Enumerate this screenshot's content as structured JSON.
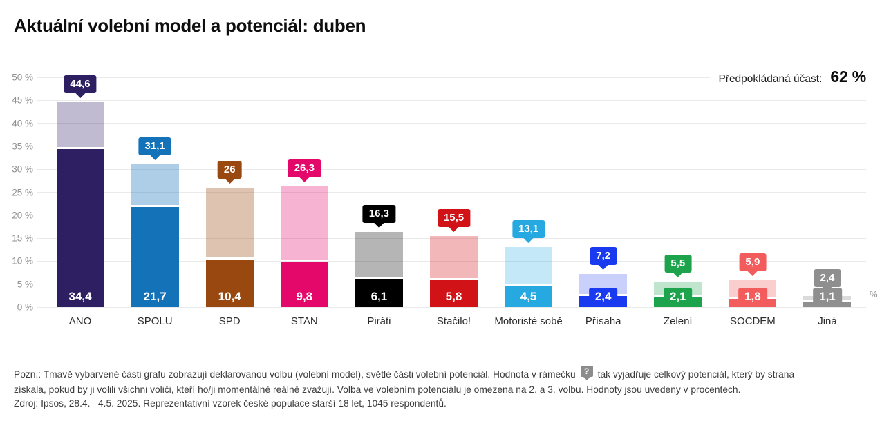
{
  "title": "Aktuální volební model a potenciál: duben",
  "turnout": {
    "label": "Předpokládaná účast:",
    "value": "62 %"
  },
  "axis": {
    "unit": "%"
  },
  "chart_data": {
    "type": "bar",
    "stacked": true,
    "title": "Aktuální volební model a potenciál: duben",
    "categories": [
      "ANO",
      "SPOLU",
      "SPD",
      "STAN",
      "Piráti",
      "Stačilo!",
      "Motoristé sobě",
      "Přísaha",
      "Zelení",
      "SOCDEM",
      "Jiná"
    ],
    "series": [
      {
        "name": "volební model (deklarovaná volba, tmavá část)",
        "values": [
          34.4,
          21.7,
          10.4,
          9.8,
          6.1,
          5.8,
          4.5,
          2.4,
          2.1,
          1.8,
          1.1
        ]
      },
      {
        "name": "volební potenciál (celkem, světlá část)",
        "values": [
          44.6,
          31.1,
          26,
          26.3,
          16.3,
          15.5,
          13.1,
          7.2,
          5.5,
          5.9,
          2.4
        ]
      }
    ],
    "value_labels": [
      "34,4",
      "21,7",
      "10,4",
      "9,8",
      "6,1",
      "5,8",
      "4,5",
      "2,4",
      "2,1",
      "1,8",
      "1,1"
    ],
    "potential_labels": [
      "44,6",
      "31,1",
      "26",
      "26,3",
      "16,3",
      "15,5",
      "13,1",
      "7,2",
      "5,5",
      "5,9",
      "2,4"
    ],
    "bar_colors": [
      "#2d1f62",
      "#1372b8",
      "#99480f",
      "#e3086a",
      "#000000",
      "#d11217",
      "#25a9e0",
      "#1a3af0",
      "#1ca34c",
      "#f25c5c",
      "#8f8f8f"
    ],
    "potential_colors": [
      "rgba(45,31,98,0.30)",
      "rgba(19,114,184,0.35)",
      "rgba(153,72,15,0.33)",
      "rgba(227,8,106,0.30)",
      "rgba(0,0,0,0.29)",
      "rgba(209,18,23,0.30)",
      "rgba(37,169,224,0.27)",
      "rgba(26,58,240,0.24)",
      "rgba(28,163,76,0.28)",
      "rgba(242,92,92,0.30)",
      "rgba(143,143,143,0.32)"
    ],
    "ylim": [
      0,
      50
    ],
    "ytick_step": 5,
    "ytick_suffix": " %",
    "grid": true,
    "unit": "%",
    "legend_position": "none"
  },
  "note": {
    "prefix": "Pozn.: Tmavě vybarvené části grafu zobrazují deklarovanou volbu (volební model), světlé části volební potenciál. Hodnota v rámečku",
    "badge": "?",
    "suffix": "tak vyjadřuje celkový potenciál, který by strana získala, pokud by ji volili všichni voliči, kteří ho/ji momentálně reálně zvažují. Volba ve volebním potenciálu je omezena na 2. a 3. volbu. Hodnoty jsou uvedeny v procentech."
  },
  "source": "Zdroj: Ipsos, 28.4.– 4.5. 2025. Reprezentativní vzorek české populace starší 18 let, 1045 respondentů."
}
